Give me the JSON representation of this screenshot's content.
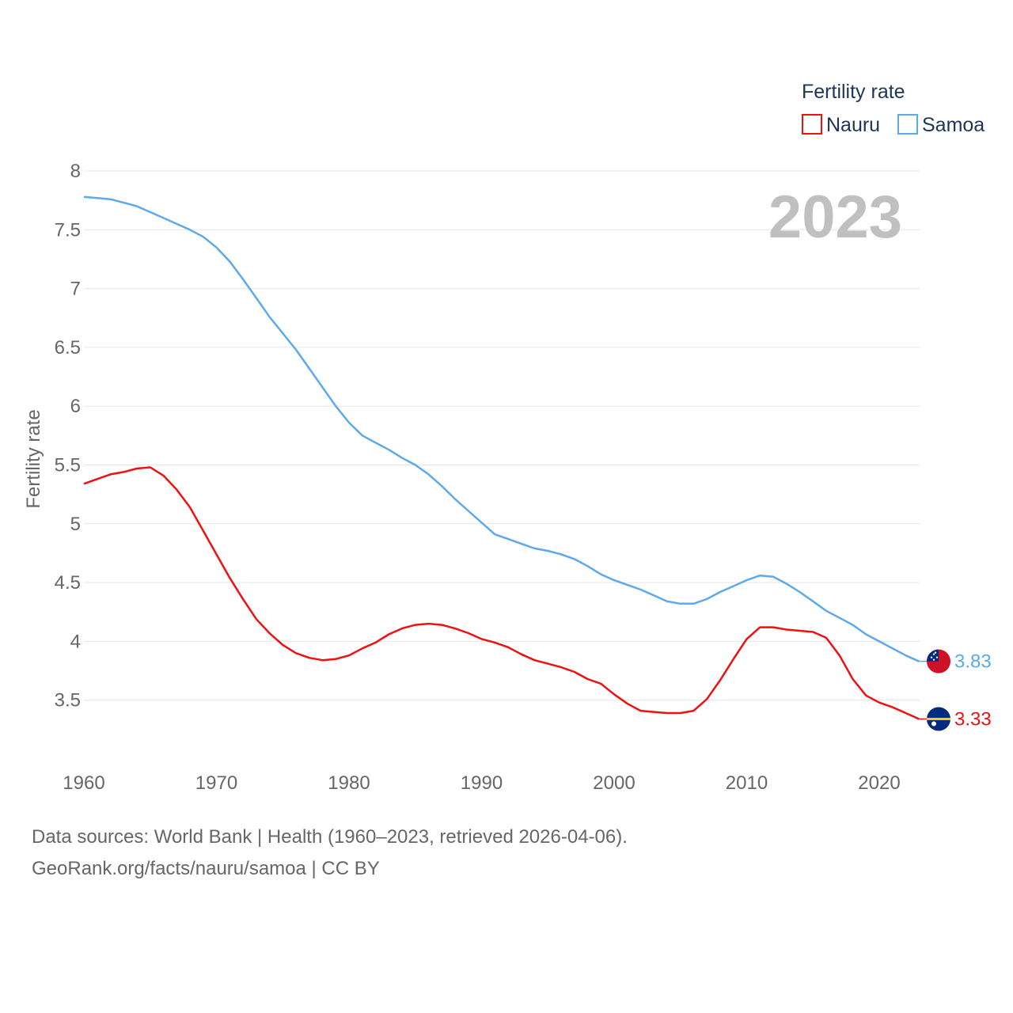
{
  "chart_data": {
    "type": "line",
    "title": "",
    "ylabel": "Fertility rate",
    "xlabel": "",
    "year_label": "2023",
    "legend_title": "Fertility rate",
    "ylim": [
      3.0,
      8.0
    ],
    "xlim": [
      1960,
      2023
    ],
    "y_ticks": [
      "3.5",
      "4",
      "4.5",
      "5",
      "5.5",
      "6",
      "6.5",
      "7",
      "7.5",
      "8"
    ],
    "x_ticks": [
      "1960",
      "1970",
      "1980",
      "1990",
      "2000",
      "2010",
      "2020"
    ],
    "x": [
      1960,
      1961,
      1962,
      1963,
      1964,
      1965,
      1966,
      1967,
      1968,
      1969,
      1970,
      1971,
      1972,
      1973,
      1974,
      1975,
      1976,
      1977,
      1978,
      1979,
      1980,
      1981,
      1982,
      1983,
      1984,
      1985,
      1986,
      1987,
      1988,
      1989,
      1990,
      1991,
      1992,
      1993,
      1994,
      1995,
      1996,
      1997,
      1998,
      1999,
      2000,
      2001,
      2002,
      2003,
      2004,
      2005,
      2006,
      2007,
      2008,
      2009,
      2010,
      2011,
      2012,
      2013,
      2014,
      2015,
      2016,
      2017,
      2018,
      2019,
      2020,
      2021,
      2022,
      2023
    ],
    "series": [
      {
        "name": "Nauru",
        "color": "#ee1111",
        "end_label": "3.33",
        "flag_icon": "nauru-flag-icon",
        "values": [
          5.34,
          5.38,
          5.42,
          5.44,
          5.47,
          5.48,
          5.41,
          5.29,
          5.14,
          4.94,
          4.74,
          4.54,
          4.36,
          4.19,
          4.07,
          3.97,
          3.9,
          3.86,
          3.84,
          3.85,
          3.88,
          3.94,
          3.99,
          4.06,
          4.11,
          4.14,
          4.15,
          4.14,
          4.11,
          4.07,
          4.02,
          3.99,
          3.95,
          3.89,
          3.84,
          3.81,
          3.78,
          3.74,
          3.68,
          3.64,
          3.55,
          3.47,
          3.41,
          3.4,
          3.39,
          3.39,
          3.41,
          3.51,
          3.67,
          3.85,
          4.02,
          4.12,
          4.12,
          4.1,
          4.09,
          4.08,
          4.03,
          3.88,
          3.68,
          3.54,
          3.48,
          3.44,
          3.39,
          3.34
        ]
      },
      {
        "name": "Samoa",
        "color": "#5da9e9",
        "end_label": "3.83",
        "flag_icon": "samoa-flag-icon",
        "values": [
          7.78,
          7.77,
          7.76,
          7.73,
          7.7,
          7.65,
          7.6,
          7.55,
          7.5,
          7.44,
          7.35,
          7.23,
          7.08,
          6.92,
          6.76,
          6.62,
          6.48,
          6.32,
          6.16,
          6.0,
          5.86,
          5.75,
          5.69,
          5.63,
          5.56,
          5.5,
          5.42,
          5.32,
          5.21,
          5.11,
          5.01,
          4.91,
          4.87,
          4.83,
          4.79,
          4.77,
          4.74,
          4.7,
          4.64,
          4.57,
          4.52,
          4.48,
          4.44,
          4.39,
          4.34,
          4.32,
          4.32,
          4.36,
          4.42,
          4.47,
          4.52,
          4.56,
          4.55,
          4.49,
          4.42,
          4.34,
          4.26,
          4.2,
          4.14,
          4.06,
          4.0,
          3.94,
          3.88,
          3.83
        ]
      }
    ]
  },
  "footer": {
    "sources": "Data sources: World Bank | Health (1960–2023, retrieved 2026-04-06).",
    "credit": "GeoRank.org/facts/nauru/samoa | CC BY"
  }
}
